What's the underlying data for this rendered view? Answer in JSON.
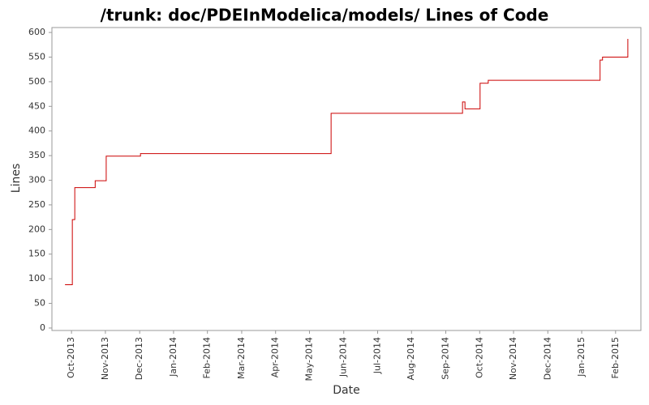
{
  "chart_data": {
    "type": "step-line",
    "title": "/trunk: doc/PDEInModelica/models/ Lines of Code",
    "x_label": "Date",
    "y_label": "Lines",
    "xlim": [
      2013.702,
      2015.145
    ],
    "xticks": [
      {
        "value": 2013.75,
        "label": "Oct-2013"
      },
      {
        "value": 2013.833,
        "label": "Nov-2013"
      },
      {
        "value": 2013.917,
        "label": "Dec-2013"
      },
      {
        "value": 2014.0,
        "label": "Jan-2014"
      },
      {
        "value": 2014.083,
        "label": "Feb-2014"
      },
      {
        "value": 2014.167,
        "label": "Mar-2014"
      },
      {
        "value": 2014.25,
        "label": "Apr-2014"
      },
      {
        "value": 2014.333,
        "label": "May-2014"
      },
      {
        "value": 2014.417,
        "label": "Jun-2014"
      },
      {
        "value": 2014.5,
        "label": "Jul-2014"
      },
      {
        "value": 2014.583,
        "label": "Aug-2014"
      },
      {
        "value": 2014.667,
        "label": "Sep-2014"
      },
      {
        "value": 2014.75,
        "label": "Oct-2014"
      },
      {
        "value": 2014.833,
        "label": "Nov-2014"
      },
      {
        "value": 2014.917,
        "label": "Dec-2014"
      },
      {
        "value": 2015.0,
        "label": "Jan-2015"
      },
      {
        "value": 2015.083,
        "label": "Feb-2015"
      }
    ],
    "ylim": [
      -5,
      610
    ],
    "yticks": [
      0,
      50,
      100,
      150,
      200,
      250,
      300,
      350,
      400,
      450,
      500,
      550,
      600
    ],
    "grid": false,
    "series": [
      {
        "color": "#cc0000",
        "x": [
          2013.734,
          2013.752,
          2013.758,
          2013.808,
          2013.835,
          2013.919,
          2014.386,
          2014.708,
          2014.714,
          2014.751,
          2014.771,
          2015.045,
          2015.051,
          2015.113
        ],
        "values": [
          88,
          220,
          285,
          299,
          349,
          354,
          436,
          459,
          445,
          497,
          503,
          544,
          550,
          587
        ]
      }
    ]
  }
}
